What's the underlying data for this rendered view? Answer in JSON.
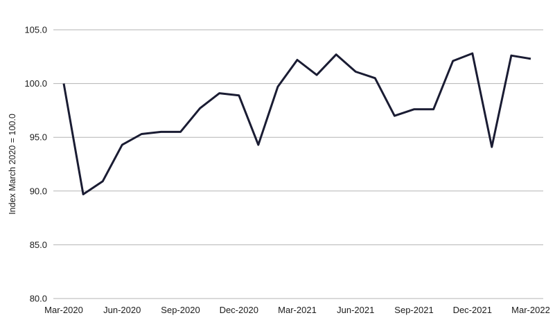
{
  "chart_data": {
    "type": "line",
    "title": "",
    "xlabel": "",
    "ylabel": "Index March 2020 = 100.0",
    "x": [
      "Mar-2020",
      "Apr-2020",
      "May-2020",
      "Jun-2020",
      "Jul-2020",
      "Aug-2020",
      "Sep-2020",
      "Oct-2020",
      "Nov-2020",
      "Dec-2020",
      "Jan-2021",
      "Feb-2021",
      "Mar-2021",
      "Apr-2021",
      "May-2021",
      "Jun-2021",
      "Jul-2021",
      "Aug-2021",
      "Sep-2021",
      "Oct-2021",
      "Nov-2021",
      "Dec-2021",
      "Jan-2022",
      "Feb-2022",
      "Mar-2022"
    ],
    "series": [
      {
        "name": "Index (March 2020 = 100.0)",
        "values": [
          100.0,
          89.7,
          90.9,
          94.3,
          95.3,
          95.5,
          95.5,
          97.7,
          99.1,
          98.9,
          94.3,
          99.7,
          102.2,
          100.8,
          102.7,
          101.1,
          100.5,
          97.0,
          97.6,
          97.6,
          102.1,
          102.8,
          94.1,
          102.6,
          102.3
        ]
      }
    ],
    "ylim": [
      80.0,
      105.0
    ],
    "yticks": [
      105.0,
      100.0,
      95.0,
      90.0,
      85.0,
      80.0
    ],
    "ytick_format": "one_decimal",
    "xtick_labels": [
      "Mar-2020",
      "Jun-2020",
      "Sep-2020",
      "Dec-2020",
      "Mar-2021",
      "Jun-2021",
      "Sep-2021",
      "Dec-2021",
      "Mar-2022"
    ],
    "grid": "horizontal",
    "legend": "none",
    "line_color": "#1a1c33",
    "grid_color": "#b3b3b3",
    "text_color": "#1b1b1b",
    "background_color": "#ffffff"
  }
}
